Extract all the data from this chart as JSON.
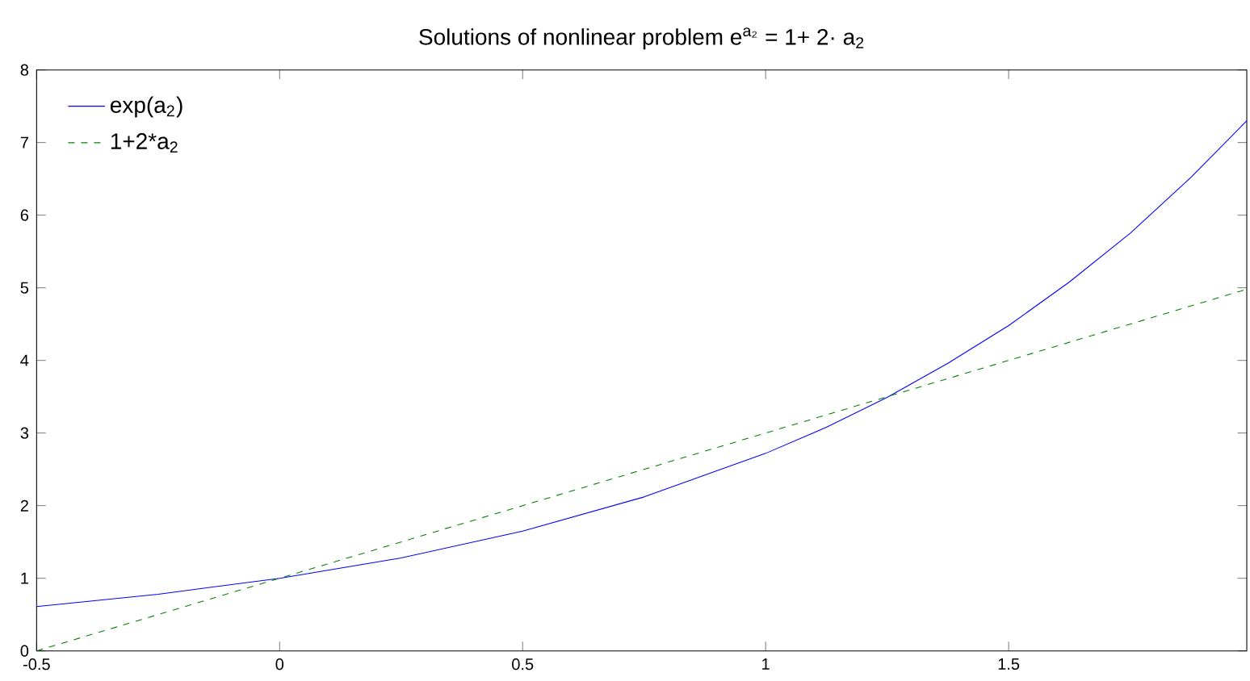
{
  "chart_data": {
    "type": "line",
    "title": "Solutions of nonlinear problem e$^{a₂}$ = 1+ 2· a$_{2}$",
    "xlim": [
      -0.5,
      1.99
    ],
    "ylim": [
      0,
      8
    ],
    "xticks": [
      -0.5,
      0,
      0.5,
      1,
      1.5
    ],
    "yticks": [
      0,
      1,
      2,
      3,
      4,
      5,
      6,
      7,
      8
    ],
    "legend": "top left",
    "grid": false,
    "series": [
      {
        "name": "exp(a$_{2}$)",
        "color": "#0000ff",
        "line_style": "solid",
        "x": [
          -0.5,
          -0.25,
          0,
          0.25,
          0.5,
          0.75,
          1,
          1.125,
          1.25,
          1.375,
          1.5,
          1.625,
          1.75,
          1.875,
          1.99
        ],
        "values": [
          0.61,
          0.78,
          1,
          1.28,
          1.65,
          2.12,
          2.72,
          3.08,
          3.49,
          3.96,
          4.48,
          5.08,
          5.75,
          6.52,
          7.3
        ]
      },
      {
        "name": "1+2*a$_{2}$",
        "color": "#008000",
        "line_style": "dashed",
        "x": [
          -0.5,
          0,
          0.5,
          1,
          1.5,
          1.99
        ],
        "values": [
          0,
          1,
          2,
          3,
          4,
          4.98
        ]
      }
    ]
  }
}
